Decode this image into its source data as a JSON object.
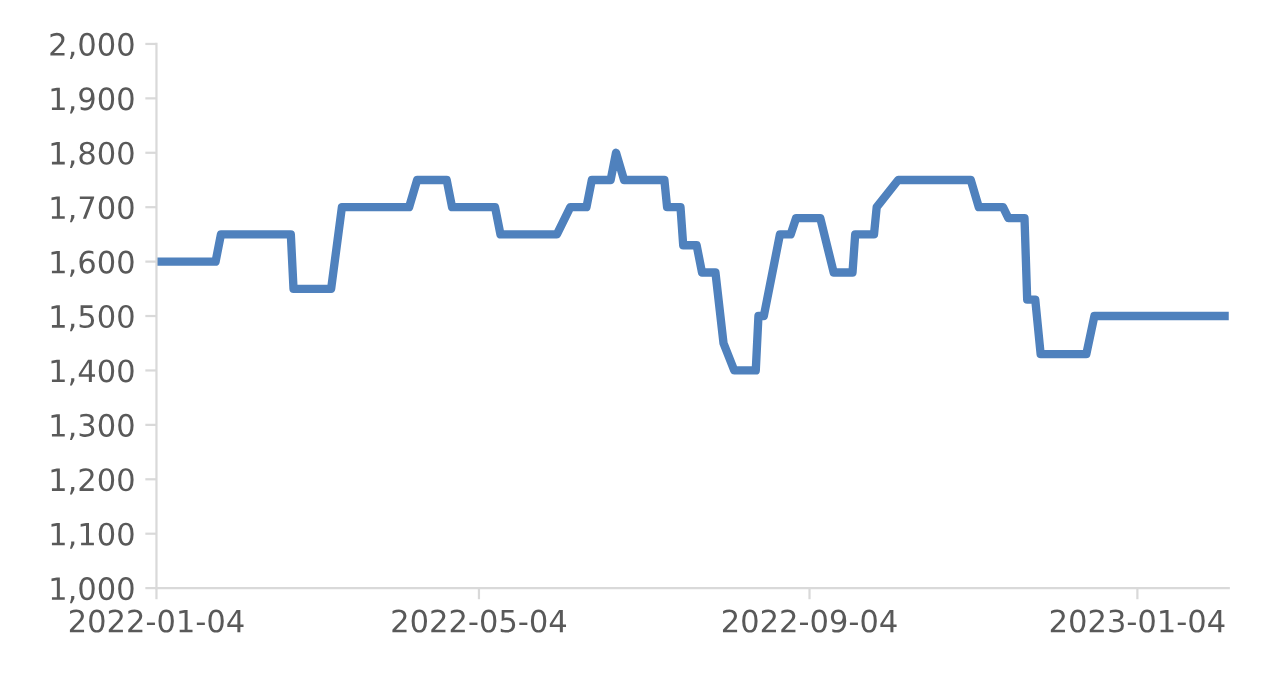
{
  "chart_data": {
    "type": "line",
    "x": [
      "2022-01-04",
      "2022-01-26",
      "2022-01-28",
      "2022-02-23",
      "2022-02-24",
      "2022-03-10",
      "2022-03-14",
      "2022-04-08",
      "2022-04-11",
      "2022-04-22",
      "2022-04-24",
      "2022-05-10",
      "2022-05-12",
      "2022-06-02",
      "2022-06-07",
      "2022-06-13",
      "2022-06-15",
      "2022-06-22",
      "2022-06-24",
      "2022-06-27",
      "2022-07-12",
      "2022-07-13",
      "2022-07-18",
      "2022-07-19",
      "2022-07-24",
      "2022-07-26",
      "2022-07-31",
      "2022-08-03",
      "2022-08-07",
      "2022-08-15",
      "2022-08-16",
      "2022-08-18",
      "2022-08-22",
      "2022-08-24",
      "2022-08-28",
      "2022-08-30",
      "2022-09-08",
      "2022-09-13",
      "2022-09-20",
      "2022-09-21",
      "2022-09-28",
      "2022-09-29",
      "2022-10-07",
      "2022-11-03",
      "2022-11-06",
      "2022-11-15",
      "2022-11-17",
      "2022-11-23",
      "2022-11-24",
      "2022-11-27",
      "2022-11-29",
      "2022-12-16",
      "2022-12-19",
      "2023-02-06"
    ],
    "series": [
      {
        "color": "#4f81bd",
        "values": [
          1600,
          1600,
          1650,
          1650,
          1550,
          1550,
          1700,
          1700,
          1750,
          1750,
          1700,
          1700,
          1650,
          1650,
          1700,
          1700,
          1750,
          1750,
          1800,
          1750,
          1750,
          1700,
          1700,
          1630,
          1630,
          1580,
          1580,
          1450,
          1400,
          1400,
          1500,
          1500,
          1600,
          1650,
          1650,
          1680,
          1680,
          1580,
          1580,
          1650,
          1650,
          1700,
          1750,
          1750,
          1700,
          1700,
          1680,
          1680,
          1530,
          1530,
          1430,
          1430,
          1500,
          1500
        ]
      }
    ],
    "xlim": [
      "2022-01-04",
      "2023-02-07"
    ],
    "xticks": [
      "2022-01-04",
      "2022-05-04",
      "2022-09-04",
      "2023-01-04"
    ],
    "ylim": [
      1000,
      2000
    ],
    "yticks": [
      {
        "value": 1000,
        "label": "1,000"
      },
      {
        "value": 1100,
        "label": "1,100"
      },
      {
        "value": 1200,
        "label": "1,200"
      },
      {
        "value": 1300,
        "label": "1,300"
      },
      {
        "value": 1400,
        "label": "1,400"
      },
      {
        "value": 1500,
        "label": "1,500"
      },
      {
        "value": 1600,
        "label": "1,600"
      },
      {
        "value": 1700,
        "label": "1,700"
      },
      {
        "value": 1800,
        "label": "1,800"
      },
      {
        "value": 1900,
        "label": "1,900"
      },
      {
        "value": 2000,
        "label": "2,000"
      }
    ],
    "grid": false,
    "legend": false,
    "marker": "none",
    "line_style": "solid"
  }
}
